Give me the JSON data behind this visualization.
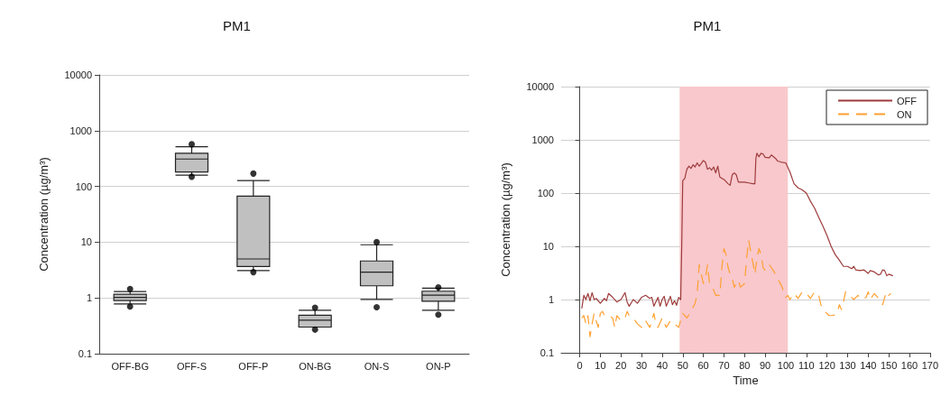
{
  "chart_data": [
    {
      "type": "box",
      "title": "PM1",
      "ylabel": "Concentration (µg/m³)",
      "categories": [
        "OFF-BG",
        "OFF-S",
        "OFF-P",
        "ON-BG",
        "ON-S",
        "ON-P"
      ],
      "log": "y",
      "ylim": [
        0.1,
        10000
      ],
      "yticks": [
        0.1,
        1,
        10,
        100,
        1000,
        10000
      ],
      "grid": "y",
      "series": [
        {
          "color": "#c0c0c0",
          "boxes": [
            {
              "low": 0.78,
              "q1": 0.9,
              "median": 1.02,
              "q3": 1.16,
              "high": 1.3,
              "outliers": [
                1.45,
                0.7
              ]
            },
            {
              "low": 159,
              "q1": 182,
              "median": 310,
              "q3": 394,
              "high": 516,
              "outliers": [
                570,
                149
              ]
            },
            {
              "low": 3.1,
              "q1": 3.65,
              "median": 5.0,
              "q3": 67,
              "high": 127,
              "outliers": [
                170,
                2.9
              ]
            },
            {
              "low": 0.3,
              "q1": 0.3,
              "median": 0.4,
              "q3": 0.49,
              "high": 0.6,
              "outliers": [
                0.67,
                0.27
              ]
            },
            {
              "low": 0.94,
              "q1": 1.65,
              "median": 2.9,
              "q3": 4.6,
              "high": 9.0,
              "outliers": [
                10,
                0.68
              ]
            },
            {
              "low": 0.6,
              "q1": 0.87,
              "median": 1.12,
              "q3": 1.32,
              "high": 1.5,
              "outliers": [
                1.55,
                0.5
              ]
            }
          ]
        }
      ]
    },
    {
      "type": "line",
      "title": "PM1",
      "xlabel": "Time",
      "ylabel": "Concentration (µg/m³)",
      "log": "y",
      "xlim": [
        -9,
        170
      ],
      "xticks": [
        0,
        10,
        20,
        30,
        40,
        50,
        60,
        70,
        80,
        90,
        100,
        110,
        120,
        130,
        140,
        150,
        160,
        170
      ],
      "ylim": [
        0.1,
        10000
      ],
      "yticks": [
        0.1,
        1,
        10,
        100,
        1000,
        10000
      ],
      "grid": "y",
      "legend": "top right",
      "marker": "none",
      "bands": [
        {
          "axis": "x",
          "from": 48.5,
          "to": 101,
          "color": "#f8c8cc"
        }
      ],
      "series": [
        {
          "name": "OFF",
          "color": "#9e3b3b",
          "line_style": "solid",
          "x": [
            1,
            2,
            3,
            4,
            5,
            6,
            7,
            8,
            10,
            12,
            13,
            14,
            16,
            18,
            20,
            22,
            23,
            24,
            26,
            28,
            30,
            32,
            34,
            35,
            36,
            38,
            39,
            40,
            41,
            42,
            44,
            45,
            46,
            47,
            48,
            49,
            49.5,
            50,
            51,
            52,
            53,
            54,
            55,
            56,
            57,
            58,
            59,
            60,
            61,
            62,
            63,
            64,
            65,
            66,
            67,
            68,
            70,
            72,
            73,
            74,
            75,
            76,
            77,
            80,
            82,
            84,
            85,
            85.5,
            86,
            87,
            88,
            89,
            90,
            92,
            93,
            95,
            96,
            98,
            100,
            102,
            104,
            106,
            108,
            110,
            112,
            114,
            116,
            118,
            120,
            122,
            124,
            126,
            128,
            130,
            132,
            133,
            134,
            136,
            138,
            140,
            141,
            143,
            145,
            146,
            147,
            148,
            149,
            150,
            152
          ],
          "values": [
            0.68,
            1.2,
            1.0,
            1.3,
            0.95,
            1.35,
            1.0,
            1.05,
            0.85,
            1.05,
            0.95,
            1.3,
            1.1,
            0.9,
            1.0,
            1.35,
            0.9,
            0.75,
            1.0,
            0.85,
            1.1,
            1.2,
            1.05,
            1.1,
            0.75,
            1.1,
            0.75,
            1.0,
            1.15,
            0.75,
            1.15,
            0.8,
            0.95,
            0.78,
            1.1,
            1.0,
            10,
            170,
            190,
            280,
            320,
            290,
            340,
            310,
            370,
            320,
            360,
            410,
            380,
            280,
            300,
            270,
            310,
            240,
            320,
            200,
            180,
            150,
            140,
            220,
            240,
            220,
            160,
            160,
            155,
            150,
            150,
            450,
            560,
            480,
            560,
            540,
            470,
            460,
            520,
            450,
            400,
            380,
            370,
            250,
            150,
            125,
            115,
            100,
            70,
            52,
            35,
            24,
            16,
            10,
            7,
            5.5,
            4.2,
            4.2,
            3.8,
            4.2,
            3.6,
            3.5,
            3.6,
            3.1,
            3.5,
            3.3,
            2.9,
            3.0,
            3.6,
            3.5,
            2.8,
            3.0,
            2.8
          ]
        },
        {
          "name": "ON",
          "color": "#ffa030",
          "line_style": "dashed",
          "x": [
            1,
            2,
            3,
            4,
            5,
            6,
            7,
            8,
            9,
            10,
            11,
            12,
            14,
            16,
            17,
            18,
            20,
            22,
            23,
            24,
            26,
            28,
            30,
            32,
            34,
            36,
            37,
            38,
            40,
            42,
            44,
            46,
            48,
            50,
            52,
            54,
            56,
            57,
            58,
            59,
            60,
            61,
            62,
            63,
            64,
            65,
            66,
            68,
            69,
            70,
            71,
            72,
            73,
            74,
            75,
            76,
            77,
            78,
            80,
            81,
            82,
            83,
            84,
            85,
            86,
            87,
            88,
            89,
            90,
            92,
            94,
            96,
            98,
            100,
            101,
            102,
            104,
            106,
            108,
            110,
            112,
            114,
            116,
            117,
            119,
            121,
            123,
            125,
            126,
            127,
            128,
            129,
            131,
            133,
            135,
            137,
            139,
            140,
            141,
            143,
            145,
            147,
            148,
            149,
            150,
            151
          ],
          "values": [
            0.45,
            0.5,
            0.35,
            0.5,
            0.2,
            0.35,
            0.55,
            0.4,
            0.3,
            0.55,
            0.6,
            0.5,
            0.5,
            0.45,
            0.3,
            0.5,
            0.4,
            0.45,
            0.6,
            0.5,
            0.45,
            0.35,
            0.3,
            0.4,
            0.3,
            0.55,
            0.35,
            0.3,
            0.45,
            0.3,
            0.4,
            0.35,
            0.3,
            0.55,
            0.45,
            0.6,
            0.85,
            1.3,
            4.5,
            3,
            2,
            2.5,
            4.5,
            2,
            1.8,
            1.5,
            1.2,
            1.2,
            4,
            9,
            7,
            4,
            3,
            2.5,
            1.7,
            2,
            2.3,
            1.7,
            2,
            6,
            13,
            8,
            5,
            3,
            6,
            9,
            7,
            4,
            3.5,
            4.5,
            3.5,
            2.5,
            1.8,
            1.1,
            1.2,
            1.0,
            1.3,
            1.05,
            1.4,
            1.3,
            1.05,
            1.4,
            1.2,
            0.8,
            0.6,
            0.5,
            0.5,
            0.55,
            0.8,
            0.65,
            0.9,
            1.4,
            1.2,
            1.0,
            1.2,
            1.0,
            1.1,
            1.4,
            1.0,
            1.3,
            1.05,
            0.8,
            1.1,
            1.4,
            1.2,
            1.3
          ]
        }
      ]
    }
  ]
}
